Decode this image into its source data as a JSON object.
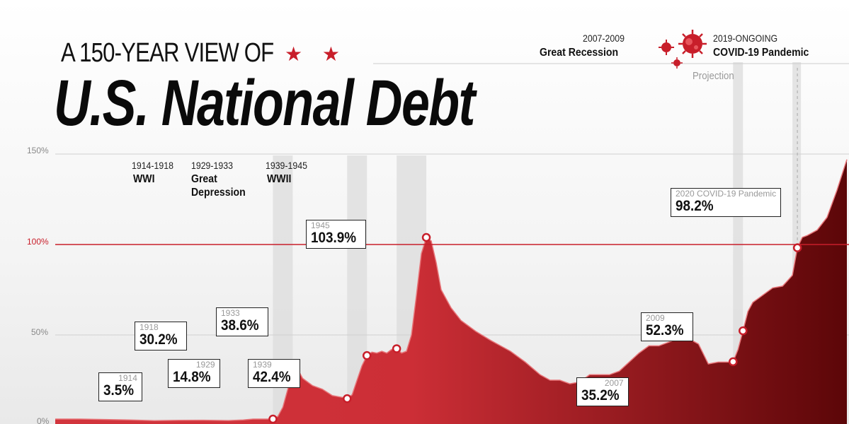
{
  "header": {
    "subtitle": "A 150-YEAR VIEW OF",
    "stars": "★ ★",
    "title": "U.S. National Debt"
  },
  "chart_data": {
    "type": "area",
    "xlim": [
      1870,
      2030
    ],
    "ylim": [
      0,
      150
    ],
    "y_ticks": [
      "150%",
      "100%",
      "50%",
      "0%"
    ],
    "reference_line": 100,
    "colors": {
      "accent": "#c81e2a",
      "area_light": "#d2353d",
      "area_dark": "#5c0608"
    },
    "x": [
      1870,
      1875,
      1880,
      1885,
      1890,
      1895,
      1900,
      1905,
      1908,
      1910,
      1912,
      1914,
      1915,
      1916,
      1917,
      1918,
      1919,
      1920,
      1922,
      1924,
      1926,
      1928,
      1929,
      1930,
      1931,
      1932,
      1933,
      1934,
      1935,
      1936,
      1937,
      1938,
      1939,
      1940,
      1941,
      1942,
      1943,
      1944,
      1945,
      1946,
      1947,
      1948,
      1950,
      1952,
      1955,
      1958,
      1960,
      1962,
      1965,
      1968,
      1970,
      1972,
      1974,
      1976,
      1978,
      1980,
      1982,
      1984,
      1986,
      1988,
      1990,
      1992,
      1994,
      1996,
      1998,
      2000,
      2002,
      2004,
      2006,
      2007,
      2008,
      2009,
      2010,
      2011,
      2012,
      2013,
      2015,
      2017,
      2018,
      2019,
      2020,
      2021,
      2022,
      2024,
      2026,
      2028,
      2030
    ],
    "values": [
      3.5,
      3.5,
      3.3,
      3.0,
      2.6,
      2.8,
      2.9,
      2.7,
      3.0,
      3.5,
      3.5,
      3.5,
      5.0,
      10.0,
      20.0,
      30.2,
      31.0,
      26.0,
      22.0,
      20.0,
      16.5,
      15.5,
      14.8,
      17.0,
      25.0,
      33.0,
      38.6,
      40.5,
      40.0,
      41.0,
      40.0,
      42.0,
      42.4,
      40.0,
      41.0,
      50.0,
      72.0,
      95.0,
      103.9,
      102.0,
      90.0,
      75.0,
      65.0,
      58.0,
      52.0,
      47.0,
      44.0,
      41.0,
      35.0,
      28.0,
      25.0,
      25.0,
      23.0,
      24.0,
      28.0,
      28.0,
      28.0,
      30.0,
      35.0,
      40.0,
      44.0,
      44.0,
      46.0,
      48.0,
      48.0,
      45.0,
      34.0,
      35.0,
      35.0,
      35.2,
      42.0,
      52.3,
      63.0,
      68.0,
      70.0,
      72.0,
      76.0,
      77.0,
      80.0,
      83.0,
      98.2,
      104.0,
      105.0,
      108.0,
      115.0,
      130.0,
      147.0
    ],
    "periods": [
      {
        "dates": "1914-1918",
        "name": "WWI",
        "start": 1914,
        "end": 1918
      },
      {
        "dates": "1929-1933",
        "name": "Great\nDepression",
        "start": 1929,
        "end": 1933
      },
      {
        "dates": "1939-1945",
        "name": "WWII",
        "start": 1939,
        "end": 1945
      },
      {
        "dates": "2007-2009",
        "name": "Great Recession",
        "start": 2007,
        "end": 2009
      },
      {
        "dates": "2019-ONGOING",
        "name": "COVID-19 Pandemic",
        "start": 2019,
        "end": 2020
      }
    ],
    "projection_label": "Projection",
    "callouts": [
      {
        "year": "1914",
        "value": "3.5%",
        "x": 1914,
        "y": 3.5
      },
      {
        "year": "1918",
        "value": "30.2%",
        "x": 1918,
        "y": 30.2
      },
      {
        "year": "1929",
        "value": "14.8%",
        "x": 1929,
        "y": 14.8
      },
      {
        "year": "1933",
        "value": "38.6%",
        "x": 1933,
        "y": 38.6
      },
      {
        "year": "1939",
        "value": "42.4%",
        "x": 1939,
        "y": 42.4
      },
      {
        "year": "1945",
        "value": "103.9%",
        "x": 1945,
        "y": 103.9
      },
      {
        "year": "2007",
        "value": "35.2%",
        "x": 2007,
        "y": 35.2
      },
      {
        "year": "2009",
        "value": "52.3%",
        "x": 2009,
        "y": 52.3
      },
      {
        "year": "2020 COVID-19 Pandemic",
        "value": "98.2%",
        "x": 2020,
        "y": 98.2
      }
    ]
  }
}
